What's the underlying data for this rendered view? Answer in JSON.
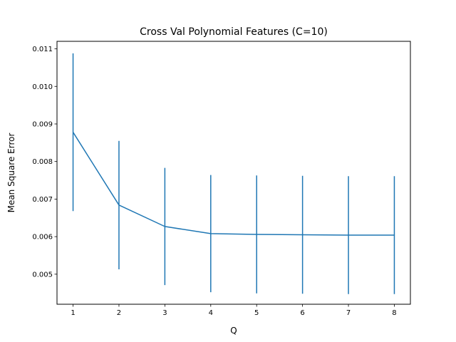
{
  "chart_data": {
    "type": "line",
    "title": "Cross Val Polynomial Features (C=10)",
    "xlabel": "Q",
    "ylabel": "Mean Square Error",
    "x": [
      1,
      2,
      3,
      4,
      5,
      6,
      7,
      8
    ],
    "series": [
      {
        "values": [
          0.00878,
          0.00684,
          0.00627,
          0.00608,
          0.00606,
          0.00605,
          0.00604,
          0.00604
        ],
        "errors": [
          0.0021,
          0.00171,
          0.00156,
          0.00156,
          0.00157,
          0.00157,
          0.00157,
          0.00157
        ]
      }
    ],
    "xlim": [
      0.65,
      8.35
    ],
    "ylim": [
      0.0042,
      0.0112
    ],
    "xticks": [
      1,
      2,
      3,
      4,
      5,
      6,
      7,
      8
    ],
    "yticks": [
      0.005,
      0.006,
      0.007,
      0.008,
      0.009,
      0.01,
      0.011
    ],
    "ytick_labels": [
      "0.005",
      "0.006",
      "0.007",
      "0.008",
      "0.009",
      "0.010",
      "0.011"
    ],
    "grid": false,
    "line_color": "#1f77b4"
  }
}
